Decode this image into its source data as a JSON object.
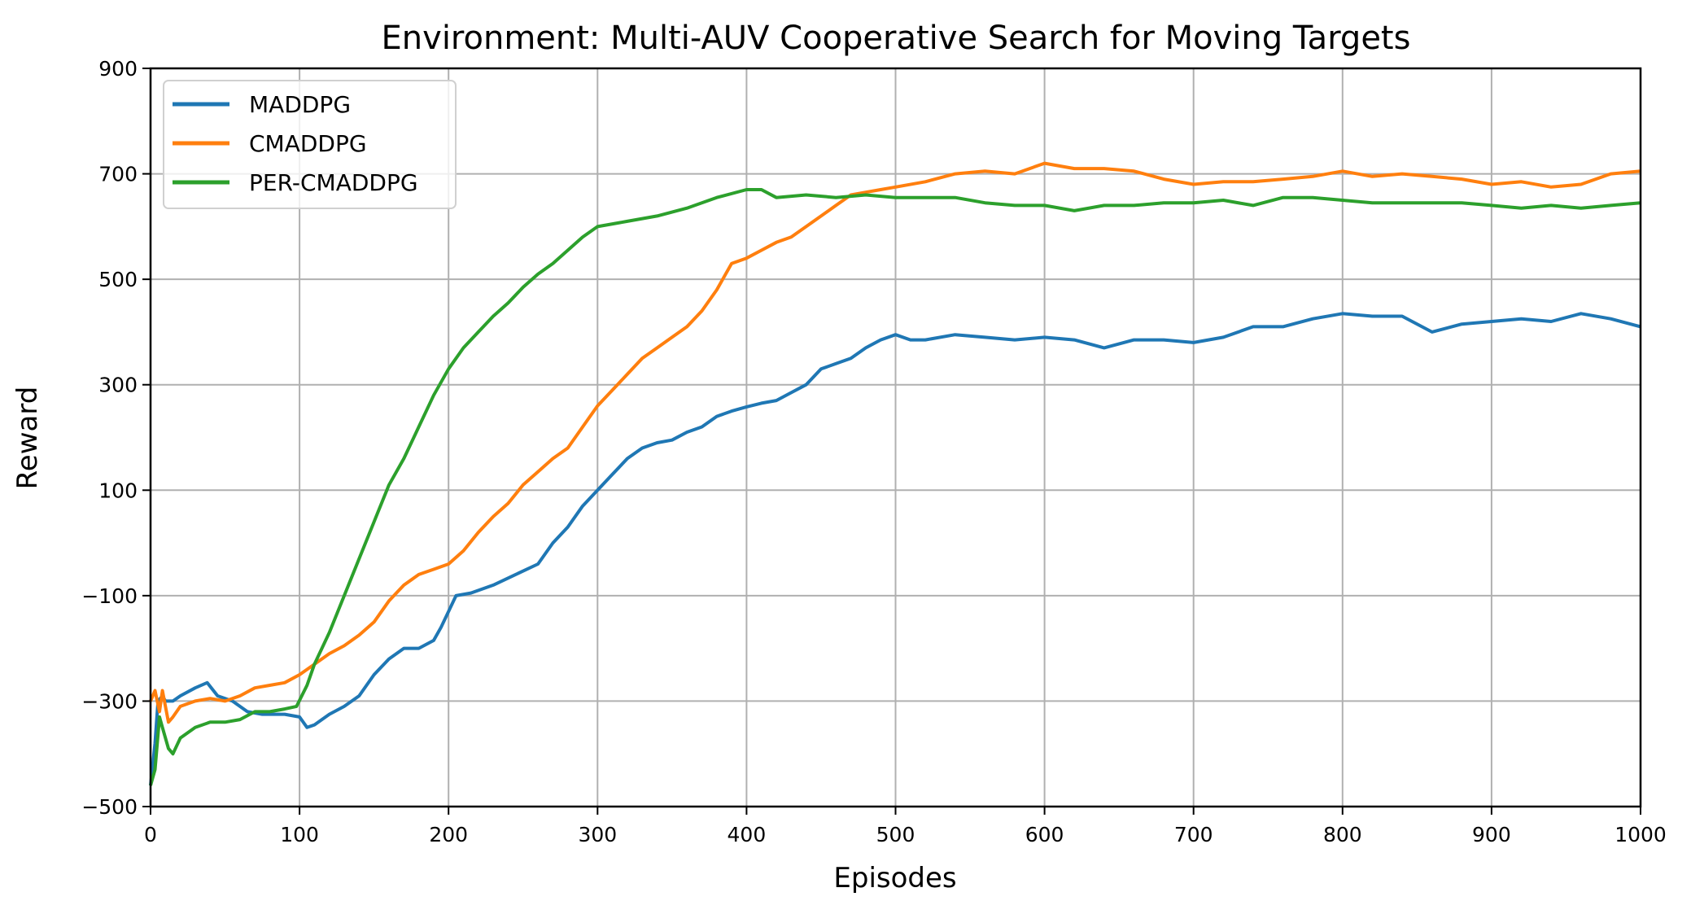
{
  "chart_data": {
    "type": "line",
    "title": "Environment: Multi-AUV Cooperative Search for Moving Targets",
    "xlabel": "Episodes",
    "ylabel": "Reward",
    "xlim": [
      0,
      1000
    ],
    "ylim": [
      -500,
      900
    ],
    "xticks": [
      0,
      100,
      200,
      300,
      400,
      500,
      600,
      700,
      800,
      900,
      1000
    ],
    "yticks": [
      -500,
      -300,
      -100,
      100,
      300,
      500,
      700,
      900
    ],
    "ytick_labels": [
      "−500",
      "−300",
      "−100",
      "100",
      "300",
      "500",
      "700",
      "900"
    ],
    "grid": true,
    "legend_position": "top-left",
    "series": [
      {
        "name": "MADDPG",
        "color": "#1f77b4",
        "x": [
          0,
          3,
          5,
          8,
          10,
          15,
          20,
          30,
          38,
          45,
          55,
          65,
          75,
          90,
          100,
          105,
          110,
          120,
          130,
          140,
          150,
          160,
          170,
          180,
          190,
          195,
          200,
          205,
          215,
          230,
          245,
          260,
          270,
          280,
          290,
          300,
          310,
          320,
          330,
          340,
          350,
          360,
          370,
          380,
          390,
          400,
          410,
          420,
          430,
          440,
          450,
          460,
          470,
          480,
          490,
          500,
          510,
          520,
          540,
          560,
          580,
          600,
          620,
          640,
          660,
          680,
          700,
          720,
          740,
          760,
          780,
          800,
          820,
          840,
          860,
          880,
          900,
          920,
          940,
          960,
          980,
          1000
        ],
        "y": [
          -460,
          -380,
          -300,
          -290,
          -300,
          -300,
          -290,
          -275,
          -265,
          -290,
          -300,
          -320,
          -325,
          -325,
          -330,
          -350,
          -345,
          -325,
          -310,
          -290,
          -250,
          -220,
          -200,
          -200,
          -185,
          -160,
          -130,
          -100,
          -95,
          -80,
          -60,
          -40,
          0,
          30,
          70,
          100,
          130,
          160,
          180,
          190,
          195,
          210,
          220,
          240,
          250,
          258,
          265,
          270,
          285,
          300,
          330,
          340,
          350,
          370,
          385,
          395,
          385,
          385,
          395,
          390,
          385,
          390,
          385,
          370,
          385,
          385,
          380,
          390,
          410,
          410,
          425,
          435,
          430,
          430,
          400,
          415,
          420,
          425,
          420,
          435,
          425,
          410
        ]
      },
      {
        "name": "CMADDPG",
        "color": "#ff7f0e",
        "x": [
          0,
          3,
          6,
          8,
          12,
          15,
          20,
          30,
          40,
          50,
          60,
          70,
          80,
          90,
          100,
          110,
          120,
          130,
          140,
          150,
          160,
          170,
          180,
          190,
          200,
          210,
          220,
          230,
          240,
          250,
          260,
          270,
          280,
          290,
          300,
          310,
          320,
          330,
          340,
          350,
          360,
          370,
          380,
          390,
          400,
          410,
          420,
          430,
          440,
          450,
          460,
          470,
          480,
          490,
          500,
          520,
          540,
          560,
          580,
          600,
          620,
          640,
          660,
          680,
          700,
          720,
          740,
          760,
          780,
          800,
          820,
          840,
          860,
          880,
          900,
          920,
          940,
          960,
          980,
          1000
        ],
        "y": [
          -300,
          -280,
          -320,
          -280,
          -340,
          -330,
          -310,
          -300,
          -295,
          -300,
          -290,
          -275,
          -270,
          -265,
          -250,
          -230,
          -210,
          -195,
          -175,
          -150,
          -110,
          -80,
          -60,
          -50,
          -40,
          -15,
          20,
          50,
          75,
          110,
          135,
          160,
          180,
          220,
          260,
          290,
          320,
          350,
          370,
          390,
          410,
          440,
          480,
          530,
          540,
          555,
          570,
          580,
          600,
          620,
          640,
          660,
          665,
          670,
          675,
          685,
          700,
          705,
          700,
          720,
          710,
          710,
          705,
          690,
          680,
          685,
          685,
          690,
          695,
          705,
          695,
          700,
          695,
          690,
          680,
          685,
          675,
          680,
          700,
          705
        ]
      },
      {
        "name": "PER-CMADDPG",
        "color": "#2ca02c",
        "x": [
          0,
          3,
          6,
          8,
          12,
          15,
          20,
          30,
          40,
          50,
          60,
          70,
          80,
          90,
          98,
          105,
          110,
          120,
          130,
          140,
          150,
          160,
          170,
          180,
          190,
          200,
          210,
          220,
          230,
          240,
          250,
          260,
          270,
          280,
          290,
          300,
          320,
          340,
          360,
          380,
          400,
          410,
          420,
          440,
          460,
          480,
          500,
          520,
          540,
          560,
          580,
          600,
          620,
          640,
          660,
          680,
          700,
          720,
          740,
          760,
          780,
          800,
          820,
          840,
          860,
          880,
          900,
          920,
          940,
          960,
          980,
          1000
        ],
        "y": [
          -460,
          -430,
          -330,
          -350,
          -390,
          -400,
          -370,
          -350,
          -340,
          -340,
          -335,
          -320,
          -320,
          -315,
          -310,
          -270,
          -230,
          -170,
          -100,
          -30,
          40,
          110,
          160,
          220,
          280,
          330,
          370,
          400,
          430,
          455,
          485,
          510,
          530,
          555,
          580,
          600,
          610,
          620,
          635,
          655,
          670,
          670,
          655,
          660,
          655,
          660,
          655,
          655,
          655,
          645,
          640,
          640,
          630,
          640,
          640,
          645,
          645,
          650,
          640,
          655,
          655,
          650,
          645,
          645,
          645,
          645,
          640,
          635,
          640,
          635,
          640,
          645
        ]
      }
    ]
  }
}
